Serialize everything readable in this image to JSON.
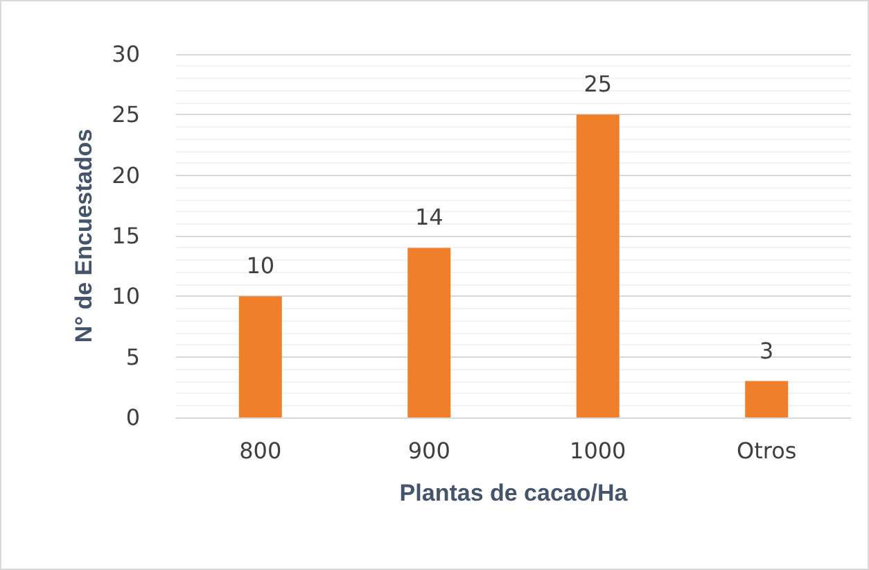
{
  "chart_data": {
    "type": "bar",
    "xlabel": "Plantas de cacao/Ha",
    "ylabel": "N° de Encuestados",
    "categories": [
      "800",
      "900",
      "1000",
      "Otros"
    ],
    "values": [
      10,
      14,
      25,
      3
    ],
    "color": "#f07f2a",
    "ylim": [
      0,
      30
    ],
    "yticks": [
      0,
      5,
      10,
      15,
      20,
      25,
      30
    ],
    "grid": true,
    "data_labels": true
  }
}
